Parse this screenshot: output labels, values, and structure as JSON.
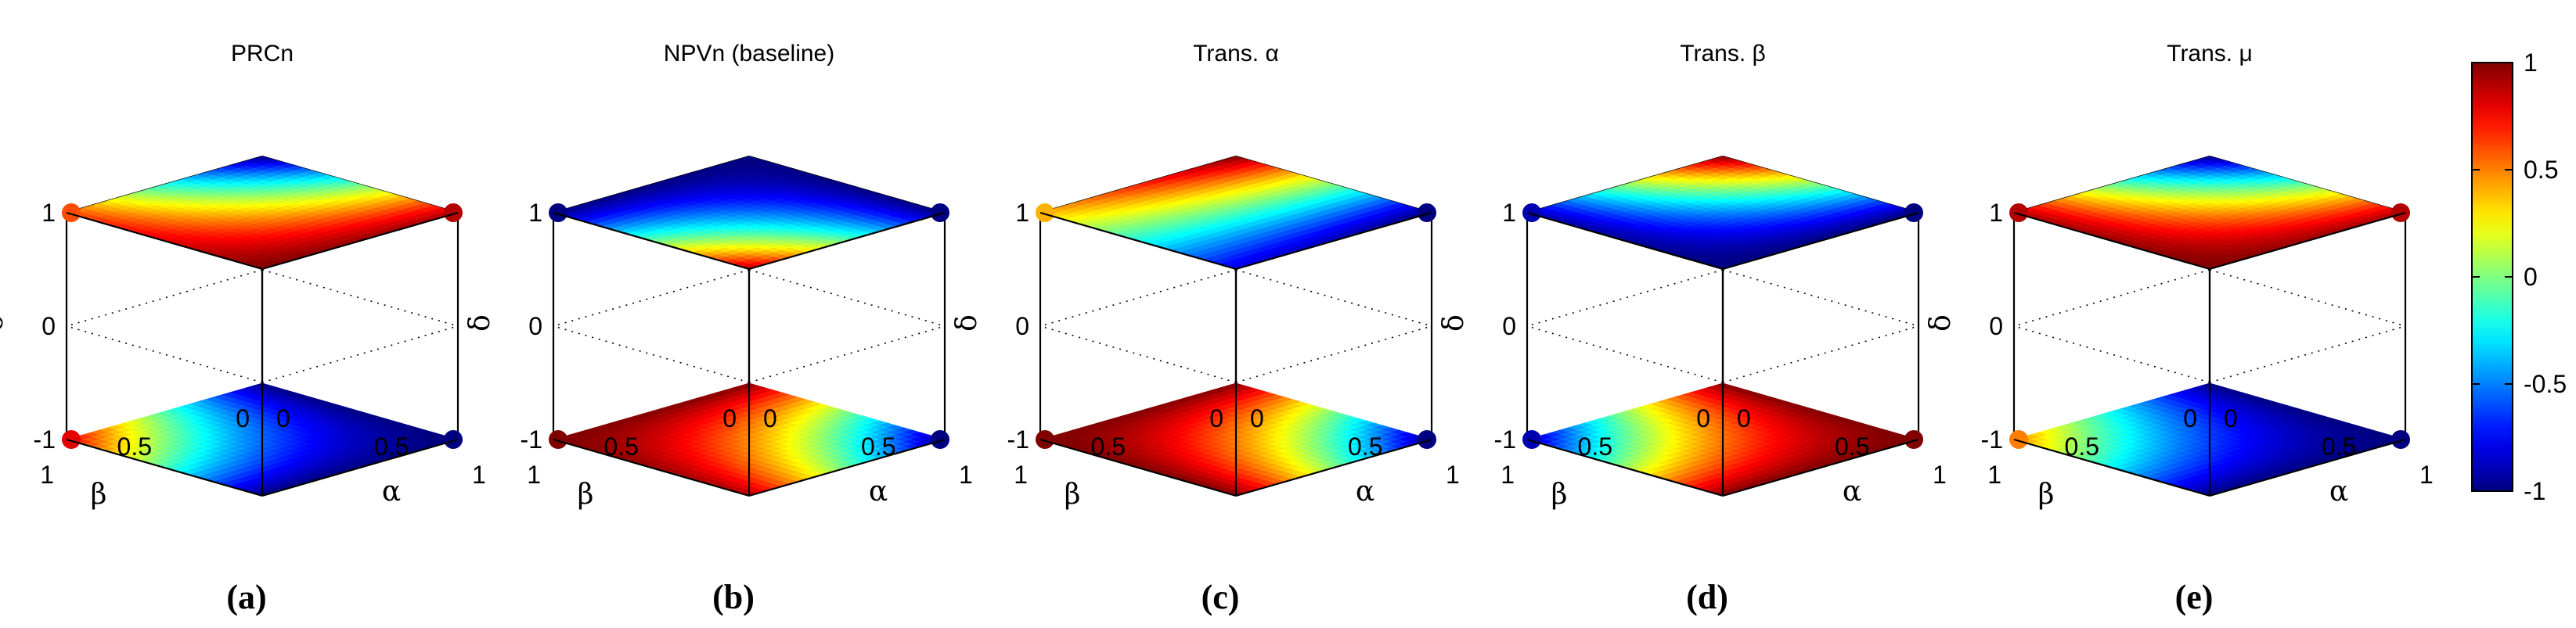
{
  "colorbar": {
    "ticks": [
      "1",
      "0.5",
      "0",
      "-0.5",
      "-1"
    ],
    "min": -1,
    "max": 1
  },
  "chart_data": [
    {
      "type": "surface",
      "title": "PRCn",
      "subfigure_label": "(a)",
      "xlabel": "α",
      "ylabel": "β",
      "zlabel": "δ",
      "xlim": [
        0,
        1
      ],
      "ylim": [
        0,
        1
      ],
      "zlim": [
        -1,
        1
      ],
      "x_ticks": [
        "0",
        "0.5",
        "1"
      ],
      "y_ticks": [
        "0",
        "0.5",
        "1"
      ],
      "z_ticks": [
        "1",
        "0",
        "-1"
      ],
      "surfaces": [
        {
          "delta": 1,
          "corner_values": {
            "a0b0": -1,
            "a1b0": 0.9,
            "a0b1": 0.6,
            "a1b1": 1
          },
          "stripe": "blue band along alpha = 0 edge"
        },
        {
          "delta": -1,
          "corner_values": {
            "a0b0": -1,
            "a1b0": -1,
            "a0b1": 0.8,
            "a1b1": -1
          },
          "stripe": "red/yellow band along beta = 1 edge"
        }
      ]
    },
    {
      "type": "surface",
      "title": "NPVn (baseline)",
      "subfigure_label": "(b)",
      "xlabel": "α",
      "ylabel": "β",
      "zlabel": "δ",
      "xlim": [
        0,
        1
      ],
      "ylim": [
        0,
        1
      ],
      "zlim": [
        -1,
        1
      ],
      "x_ticks": [
        "0",
        "0.5",
        "1"
      ],
      "y_ticks": [
        "0",
        "0.5",
        "1"
      ],
      "z_ticks": [
        "1",
        "0",
        "-1"
      ],
      "surfaces": [
        {
          "delta": 1,
          "corner_values": {
            "a0b0": -1,
            "a1b0": -1,
            "a0b1": -1,
            "a1b1": 0.9
          },
          "stripe": "red band near alpha = 1, beta = 1 edge"
        },
        {
          "delta": -1,
          "corner_values": {
            "a0b0": 1,
            "a1b0": -1,
            "a0b1": 1,
            "a1b1": 0.9
          },
          "stripe": "blue band along beta = 0 edge"
        }
      ]
    },
    {
      "type": "surface",
      "title": "Trans. α",
      "subfigure_label": "(c)",
      "xlabel": "α",
      "ylabel": "β",
      "zlabel": "δ",
      "xlim": [
        0,
        1
      ],
      "ylim": [
        0,
        1
      ],
      "zlim": [
        -1,
        1
      ],
      "x_ticks": [
        "0",
        "0.5",
        "1"
      ],
      "y_ticks": [
        "0",
        "0.5",
        "1"
      ],
      "z_ticks": [
        "1",
        "0",
        "-1"
      ],
      "surfaces": [
        {
          "delta": 1,
          "corner_values": {
            "a0b0": 1,
            "a1b0": -1,
            "a0b1": 0.4,
            "a1b1": -0.8
          },
          "stripe": "red band along alpha = 0 edge"
        },
        {
          "delta": -1,
          "corner_values": {
            "a0b0": 1,
            "a1b0": -1,
            "a0b1": 1,
            "a1b1": 1
          },
          "stripe": "blue band along beta = 0 edge"
        }
      ]
    },
    {
      "type": "surface",
      "title": "Trans. β",
      "subfigure_label": "(d)",
      "xlabel": "α",
      "ylabel": "β",
      "zlabel": "δ",
      "xlim": [
        0,
        1
      ],
      "ylim": [
        0,
        1
      ],
      "zlim": [
        -1,
        1
      ],
      "x_ticks": [
        "0",
        "0.5",
        "1"
      ],
      "y_ticks": [
        "0",
        "0.5",
        "1"
      ],
      "z_ticks": [
        "1",
        "0",
        "-1"
      ],
      "surfaces": [
        {
          "delta": 1,
          "corner_values": {
            "a0b0": 1,
            "a1b0": -1,
            "a0b1": -0.9,
            "a1b1": -1
          },
          "stripe": "red band along alpha = 0 edge"
        },
        {
          "delta": -1,
          "corner_values": {
            "a0b0": 1,
            "a1b0": 1,
            "a0b1": -0.9,
            "a1b1": 1
          },
          "stripe": "blue band along beta = 1 edge"
        }
      ]
    },
    {
      "type": "surface",
      "title": "Trans. μ",
      "subfigure_label": "(e)",
      "xlabel": "α",
      "ylabel": "β",
      "zlabel": "δ",
      "xlim": [
        0,
        1
      ],
      "ylim": [
        0,
        1
      ],
      "zlim": [
        -1,
        1
      ],
      "x_ticks": [
        "0",
        "0.5",
        "1"
      ],
      "y_ticks": [
        "0",
        "0.5",
        "1"
      ],
      "z_ticks": [
        "1",
        "0",
        "-1"
      ],
      "surfaces": [
        {
          "delta": 1,
          "corner_values": {
            "a0b0": -1,
            "a1b0": 0.9,
            "a0b1": 0.9,
            "a1b1": 1
          },
          "stripe": "blue band along alpha = 0 edge"
        },
        {
          "delta": -1,
          "corner_values": {
            "a0b0": -1,
            "a1b0": -1,
            "a0b1": 0.5,
            "a1b1": -1
          },
          "stripe": "red/yellow band along beta = 1 edge"
        }
      ]
    }
  ]
}
